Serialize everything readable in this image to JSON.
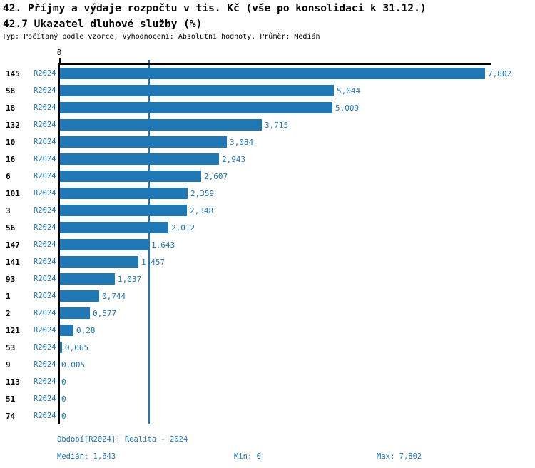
{
  "header": {
    "title": "42. Příjmy a výdaje rozpočtu v tis. Kč (vše po konsolidaci k 31.12.)",
    "subtitle": "42.7 Ukazatel dluhové služby (%)",
    "meta": "Typ: Počítaný podle vzorce, Vyhodnocení: Absolutní hodnoty, Průměr: Medián"
  },
  "chart_data": {
    "type": "bar",
    "orientation": "horizontal",
    "series_label": "R2024",
    "categories": [
      "145",
      "58",
      "18",
      "132",
      "10",
      "16",
      "6",
      "101",
      "3",
      "56",
      "147",
      "141",
      "93",
      "1",
      "2",
      "121",
      "53",
      "9",
      "113",
      "51",
      "74"
    ],
    "values": [
      7.802,
      5.044,
      5.009,
      3.715,
      3.084,
      2.943,
      2.607,
      2.359,
      2.348,
      2.012,
      1.643,
      1.457,
      1.037,
      0.744,
      0.577,
      0.28,
      0.065,
      0.005,
      0,
      0,
      0
    ],
    "value_labels": [
      "7,802",
      "5,044",
      "5,009",
      "3,715",
      "3,084",
      "2,943",
      "2,607",
      "2,359",
      "2,348",
      "2,012",
      "1,643",
      "1,457",
      "1,037",
      "0,744",
      "0,577",
      "0,28",
      "0,065",
      "0,005",
      "0",
      "0",
      "0"
    ],
    "title": "42.7 Ukazatel dluhové služby (%)",
    "xlabel": "",
    "ylabel": "",
    "axis": {
      "min": 0,
      "zero_tick_label": "0",
      "max_estimate": 7.9
    },
    "median_line_value": 1.643,
    "grid": false,
    "legend": "none",
    "bar_color": "#1f77b4",
    "accent_text_color": "#1f77b4"
  },
  "footer": {
    "period": "Období[R2024]: Realita - 2024",
    "median": "Medián: 1,643",
    "min": "Min: 0",
    "max": "Max: 7,802"
  }
}
